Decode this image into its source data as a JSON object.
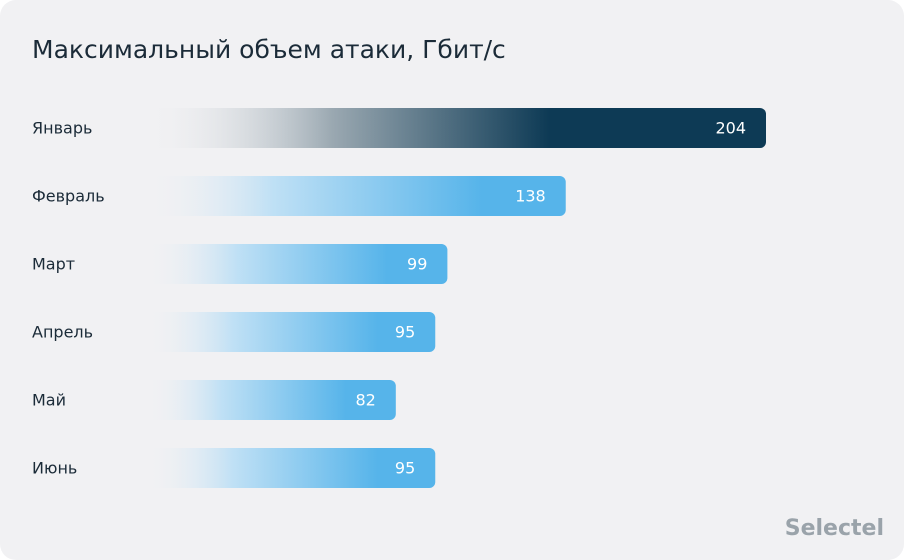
{
  "chart_data": {
    "type": "bar",
    "orientation": "horizontal",
    "title": "Максимальный объем атаки, Гбит/с",
    "categories": [
      "Январь",
      "Февраль",
      "Март",
      "Апрель",
      "Май",
      "Июнь"
    ],
    "values": [
      204,
      138,
      99,
      95,
      82,
      95
    ],
    "colors": [
      "#0d3a55",
      "#56b4ea",
      "#56b4ea",
      "#56b4ea",
      "#56b4ea",
      "#56b4ea"
    ],
    "watermark": "Selectel"
  }
}
